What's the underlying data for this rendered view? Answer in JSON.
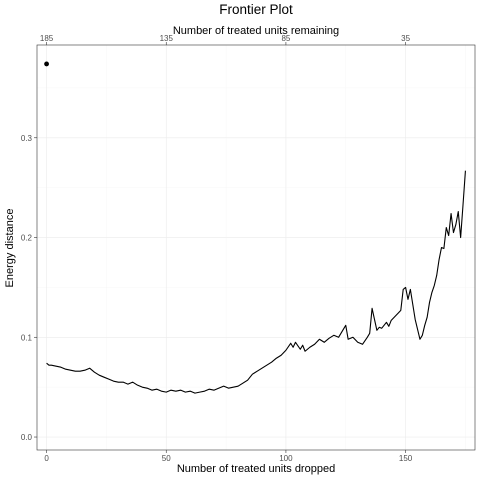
{
  "chart_data": {
    "type": "line",
    "title": "Frontier Plot",
    "xlabel": "Number of treated units dropped",
    "ylabel": "Energy distance",
    "x2label": "Number of treated units remaining",
    "xlim": [
      -4,
      179
    ],
    "ylim": [
      -0.013,
      0.393
    ],
    "xticks": [
      0,
      50,
      100,
      150
    ],
    "x2ticks": [
      {
        "label": "185",
        "dropped": 0
      },
      {
        "label": "135",
        "dropped": 50
      },
      {
        "label": "85",
        "dropped": 100
      },
      {
        "label": "35",
        "dropped": 150
      }
    ],
    "yticks": [
      0.0,
      0.1,
      0.2,
      0.3
    ],
    "ytick_labels": [
      "0.0",
      "0.1",
      "0.2",
      "0.3"
    ],
    "grid": true,
    "colors": {
      "line": "#000000",
      "grid": "#ebebeb",
      "border": "#333333",
      "tick_text": "#4d4d4d"
    },
    "point": {
      "x": 0,
      "y": 0.374
    },
    "series": [
      {
        "x": [
          0,
          1,
          2,
          4,
          6,
          8,
          10,
          12,
          14,
          16,
          18,
          20,
          22,
          24,
          26,
          28,
          30,
          32,
          34,
          36,
          38,
          40,
          42,
          44,
          46,
          48,
          50,
          52,
          54,
          56,
          58,
          60,
          62,
          64,
          66,
          68,
          70,
          72,
          74,
          76,
          78,
          80,
          82,
          84,
          86,
          88,
          90,
          92,
          94,
          96,
          98,
          100,
          102,
          103,
          104,
          106,
          107,
          108,
          110,
          112,
          114,
          116,
          118,
          120,
          122,
          124,
          125,
          126,
          128,
          130,
          132,
          134,
          135,
          136,
          138,
          139,
          140,
          142,
          143,
          144,
          146,
          148,
          149,
          150,
          151,
          152,
          154,
          156,
          157,
          158,
          159,
          160,
          161,
          162,
          163,
          164,
          165,
          166,
          167,
          168,
          169,
          170,
          171,
          172,
          173,
          174,
          175
        ],
        "y": [
          0.074,
          0.072,
          0.072,
          0.071,
          0.07,
          0.068,
          0.067,
          0.066,
          0.066,
          0.067,
          0.069,
          0.065,
          0.062,
          0.06,
          0.058,
          0.056,
          0.055,
          0.055,
          0.053,
          0.055,
          0.052,
          0.05,
          0.049,
          0.047,
          0.048,
          0.046,
          0.045,
          0.047,
          0.046,
          0.047,
          0.045,
          0.046,
          0.044,
          0.045,
          0.046,
          0.048,
          0.047,
          0.049,
          0.051,
          0.049,
          0.05,
          0.051,
          0.054,
          0.057,
          0.063,
          0.066,
          0.069,
          0.072,
          0.075,
          0.079,
          0.082,
          0.087,
          0.094,
          0.09,
          0.095,
          0.088,
          0.092,
          0.086,
          0.09,
          0.093,
          0.098,
          0.095,
          0.099,
          0.102,
          0.1,
          0.108,
          0.112,
          0.098,
          0.1,
          0.095,
          0.093,
          0.1,
          0.104,
          0.129,
          0.107,
          0.11,
          0.109,
          0.115,
          0.111,
          0.117,
          0.122,
          0.127,
          0.148,
          0.15,
          0.138,
          0.148,
          0.118,
          0.098,
          0.102,
          0.112,
          0.12,
          0.135,
          0.145,
          0.152,
          0.162,
          0.178,
          0.19,
          0.189,
          0.21,
          0.202,
          0.224,
          0.205,
          0.213,
          0.226,
          0.2,
          0.233,
          0.267
        ]
      }
    ]
  }
}
